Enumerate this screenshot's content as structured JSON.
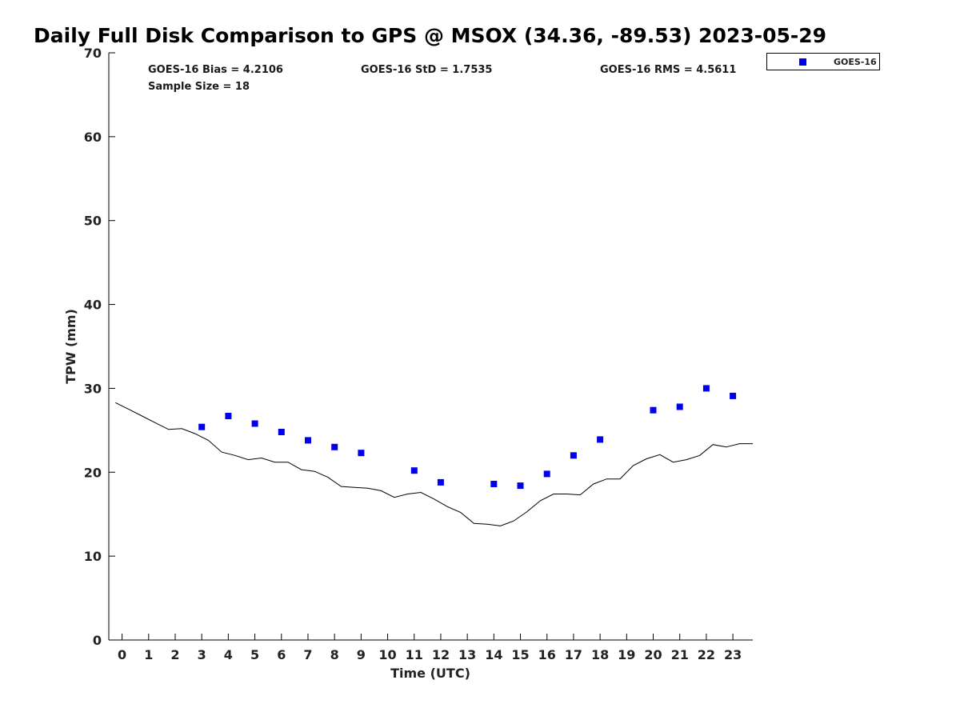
{
  "chart_data": {
    "type": "scatter",
    "title": "Daily Full Disk Comparison to GPS @ MSOX (34.36, -89.53) 2023-05-29",
    "xlabel": "Time (UTC)",
    "ylabel": "TPW (mm)",
    "xlim": [
      -0.5,
      23.75
    ],
    "ylim": [
      0,
      70
    ],
    "xticks": [
      0,
      1,
      2,
      3,
      4,
      5,
      6,
      7,
      8,
      9,
      10,
      11,
      12,
      13,
      14,
      15,
      16,
      17,
      18,
      19,
      20,
      21,
      22,
      23
    ],
    "yticks": [
      0,
      10,
      20,
      30,
      40,
      50,
      60,
      70
    ],
    "grid": false,
    "legend_position": "top-right-outside",
    "stats": {
      "bias": "GOES-16 Bias = 4.2106",
      "std": "GOES-16 StD = 1.7535",
      "rms": "GOES-16 RMS = 4.5611",
      "sample_size": "Sample Size = 18"
    },
    "series": [
      {
        "name": "GOES-16",
        "kind": "scatter",
        "marker": "square",
        "color": "#0000ee",
        "x": [
          3,
          4,
          5,
          6,
          7,
          8,
          9,
          11,
          12,
          14,
          15,
          16,
          17,
          18,
          20,
          21,
          22,
          23
        ],
        "y": [
          25.4,
          26.7,
          25.8,
          24.8,
          23.8,
          23.0,
          22.3,
          20.2,
          18.8,
          18.6,
          18.4,
          19.8,
          22.0,
          23.9,
          27.4,
          27.8,
          30.0,
          29.1
        ]
      },
      {
        "kind": "line",
        "color": "#000000",
        "x": [
          -0.25,
          0.25,
          0.75,
          1.25,
          1.75,
          2.25,
          2.75,
          3.25,
          3.75,
          4.25,
          4.75,
          5.25,
          5.75,
          6.25,
          6.75,
          7.25,
          7.75,
          8.25,
          8.75,
          9.25,
          9.75,
          10.25,
          10.75,
          11.25,
          11.75,
          12.25,
          12.75,
          13.25,
          13.75,
          14.25,
          14.75,
          15.25,
          15.75,
          16.25,
          16.75,
          17.25,
          17.75,
          18.25,
          18.75,
          19.25,
          19.75,
          20.25,
          20.75,
          21.25,
          21.75,
          22.25,
          22.75,
          23.25,
          23.75
        ],
        "y": [
          28.3,
          27.5,
          26.7,
          25.9,
          25.1,
          25.2,
          24.6,
          23.8,
          22.4,
          22.0,
          21.5,
          21.7,
          21.2,
          21.2,
          20.3,
          20.1,
          19.4,
          18.3,
          18.2,
          18.1,
          17.8,
          17.0,
          17.4,
          17.6,
          16.8,
          15.9,
          15.2,
          13.9,
          13.8,
          13.6,
          14.2,
          15.3,
          16.6,
          17.4,
          17.4,
          17.3,
          18.6,
          19.2,
          19.2,
          20.8,
          21.6,
          22.1,
          21.2,
          21.5,
          22.0,
          23.3,
          23.0,
          23.4,
          23.4
        ]
      }
    ]
  }
}
